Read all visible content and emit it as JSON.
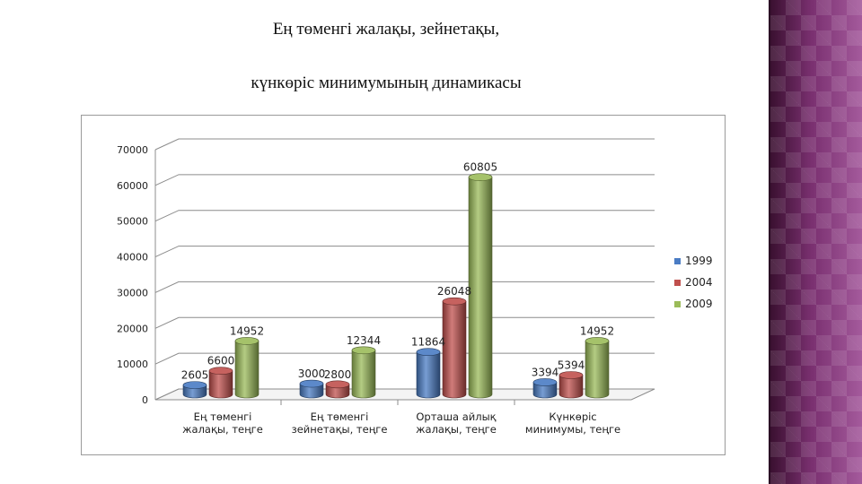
{
  "slide": {
    "title_line1": "Ең төменгі жалақы, зейнетақы,",
    "title_line2": "күнкөріс минимумының динамикасы"
  },
  "chart_data": {
    "type": "bar",
    "style": "3d-cylinder",
    "categories": [
      [
        "Ең төменгі",
        "жалақы, теңге"
      ],
      [
        "Ең төменгі",
        "зейнетақы, теңге"
      ],
      [
        "Орташа айлық",
        "жалақы, теңге"
      ],
      [
        "Күнкөріс",
        "минимумы, теңге"
      ]
    ],
    "series": [
      {
        "name": "1999",
        "color": "#4a7cc4",
        "values": [
          2605,
          3000,
          11864,
          3394
        ]
      },
      {
        "name": "2004",
        "color": "#c0504d",
        "values": [
          6600,
          2800,
          26048,
          5394
        ]
      },
      {
        "name": "2009",
        "color": "#9bbb59",
        "values": [
          14952,
          12344,
          60805,
          14952
        ]
      }
    ],
    "ylim": [
      0,
      70000
    ],
    "yticks": [
      0,
      10000,
      20000,
      30000,
      40000,
      50000,
      60000,
      70000
    ],
    "grid": true,
    "legend": "right"
  }
}
